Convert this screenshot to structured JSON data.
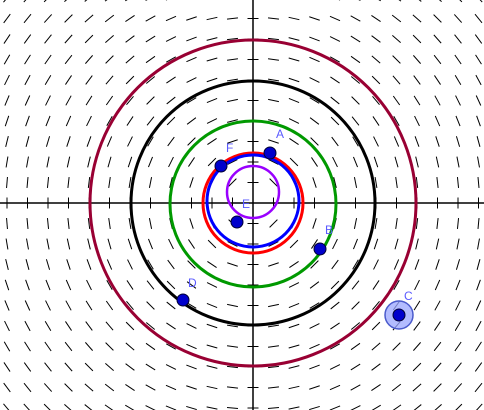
{
  "plane": {
    "axis_color": "#000000",
    "slope_color": "#000000",
    "background": "#ffffff"
  },
  "circles": [
    {
      "name": "outer-crimson-circle",
      "color": "#990033"
    },
    {
      "name": "black-circle",
      "color": "#000000"
    },
    {
      "name": "green-circle",
      "color": "#009900"
    },
    {
      "name": "red-circle",
      "color": "#ff0000"
    },
    {
      "name": "blue-circle",
      "color": "#0000ff"
    },
    {
      "name": "purple-circle",
      "color": "#9900ff"
    }
  ],
  "points": [
    {
      "label": "A",
      "color": "#0000cc"
    },
    {
      "label": "B",
      "color": "#0000cc"
    },
    {
      "label": "C",
      "color": "#0000cc",
      "selected": true
    },
    {
      "label": "D",
      "color": "#0000cc"
    },
    {
      "label": "E",
      "color": "#0000cc"
    },
    {
      "label": "F",
      "color": "#0000cc"
    }
  ]
}
